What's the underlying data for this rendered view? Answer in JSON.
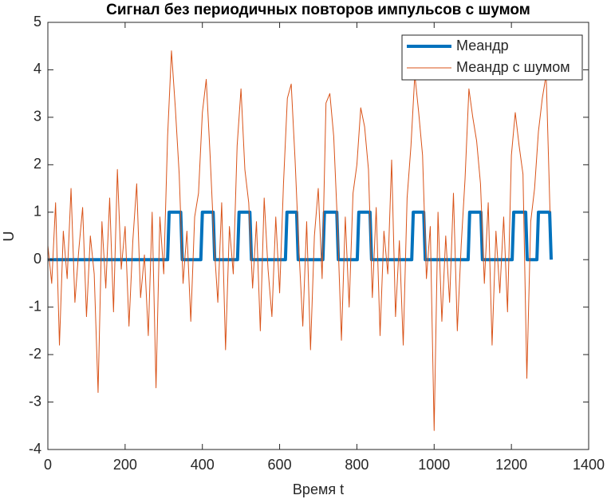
{
  "chart_data": {
    "type": "line",
    "title": "Сигнал без периодичных повторов импульсов с шумом",
    "xlabel": "Время t",
    "ylabel": "U",
    "xlim": [
      0,
      1400
    ],
    "xticks": [
      0,
      200,
      400,
      600,
      800,
      1000,
      1200,
      1400
    ],
    "ylim": [
      -4,
      5
    ],
    "yticks": [
      -4,
      -3,
      -2,
      -1,
      0,
      1,
      2,
      3,
      4,
      5
    ],
    "grid": false,
    "legend": "northeast",
    "series": [
      {
        "name": "Меандр",
        "color": "#0072BD",
        "width": 4,
        "x": [
          0,
          310,
          314,
          344,
          348,
          396,
          400,
          428,
          432,
          491,
          495,
          523,
          527,
          615,
          619,
          644,
          648,
          712,
          716,
          748,
          752,
          801,
          805,
          834,
          838,
          942,
          946,
          973,
          977,
          1088,
          1092,
          1121,
          1125,
          1202,
          1206,
          1237,
          1241,
          1266,
          1270,
          1299,
          1303
        ],
        "values": [
          0,
          0,
          1,
          1,
          0,
          0,
          1,
          1,
          0,
          0,
          1,
          1,
          0,
          0,
          1,
          1,
          0,
          0,
          1,
          1,
          0,
          0,
          1,
          1,
          0,
          0,
          1,
          1,
          0,
          0,
          1,
          1,
          0,
          0,
          1,
          1,
          0,
          0,
          1,
          1,
          0
        ]
      },
      {
        "name": "Меандр с шумом",
        "color": "#D95319",
        "width": 1,
        "x": [
          0,
          10,
          20,
          30,
          40,
          50,
          60,
          70,
          80,
          90,
          100,
          110,
          120,
          130,
          140,
          150,
          160,
          170,
          180,
          190,
          200,
          210,
          220,
          230,
          240,
          250,
          260,
          270,
          280,
          290,
          300,
          310,
          320,
          330,
          340,
          350,
          360,
          370,
          380,
          390,
          400,
          410,
          420,
          430,
          440,
          450,
          460,
          470,
          480,
          490,
          500,
          510,
          520,
          530,
          540,
          550,
          560,
          570,
          580,
          590,
          600,
          610,
          620,
          630,
          640,
          650,
          660,
          670,
          680,
          690,
          700,
          710,
          720,
          730,
          740,
          750,
          760,
          770,
          780,
          790,
          800,
          810,
          820,
          830,
          840,
          850,
          860,
          870,
          880,
          890,
          900,
          910,
          920,
          930,
          940,
          950,
          960,
          970,
          980,
          990,
          1000,
          1010,
          1020,
          1030,
          1040,
          1050,
          1060,
          1070,
          1080,
          1090,
          1100,
          1110,
          1120,
          1130,
          1140,
          1150,
          1160,
          1170,
          1180,
          1190,
          1200,
          1210,
          1220,
          1230,
          1240,
          1250,
          1260,
          1270,
          1280,
          1290,
          1300
        ],
        "values": [
          0.3,
          -0.5,
          1.2,
          -1.8,
          0.6,
          -0.4,
          1.5,
          -0.9,
          0.2,
          1.1,
          -1.2,
          0.5,
          -0.3,
          -2.8,
          0.8,
          -0.6,
          1.3,
          -1.1,
          1.9,
          -0.2,
          0.7,
          -1.4,
          0.4,
          1.6,
          -0.8,
          0.1,
          -1.6,
          1.0,
          -2.7,
          0.9,
          -0.3,
          2.6,
          4.4,
          3.2,
          1.8,
          -0.5,
          0.6,
          -1.3,
          0.9,
          1.4,
          3.1,
          3.8,
          2.2,
          0.4,
          -0.9,
          1.2,
          -1.9,
          0.7,
          -0.3,
          2.4,
          3.6,
          1.9,
          1.2,
          -0.6,
          0.8,
          -1.5,
          1.3,
          -0.2,
          -1.2,
          0.9,
          -0.7,
          1.6,
          3.4,
          3.7,
          2.1,
          0.2,
          -1.4,
          0.8,
          -1.9,
          0.5,
          1.5,
          -0.4,
          3.3,
          3.5,
          2.6,
          0.7,
          -1.7,
          0.9,
          -1.0,
          1.4,
          2.0,
          3.2,
          2.8,
          1.9,
          -0.8,
          1.1,
          -1.6,
          0.6,
          -0.3,
          2.1,
          -1.2,
          0.4,
          -1.8,
          1.3,
          2.4,
          3.9,
          3.1,
          2.2,
          -0.4,
          0.7,
          -3.6,
          1.0,
          -1.3,
          0.5,
          -0.9,
          1.4,
          -1.5,
          0.3,
          1.7,
          3.6,
          3.0,
          2.5,
          1.6,
          -0.5,
          1.2,
          -1.8,
          0.6,
          -0.7,
          0.9,
          -1.1,
          2.2,
          3.1,
          2.4,
          1.8,
          -2.5,
          0.8,
          1.5,
          2.7,
          3.4,
          3.9,
          1.0
        ]
      }
    ]
  }
}
